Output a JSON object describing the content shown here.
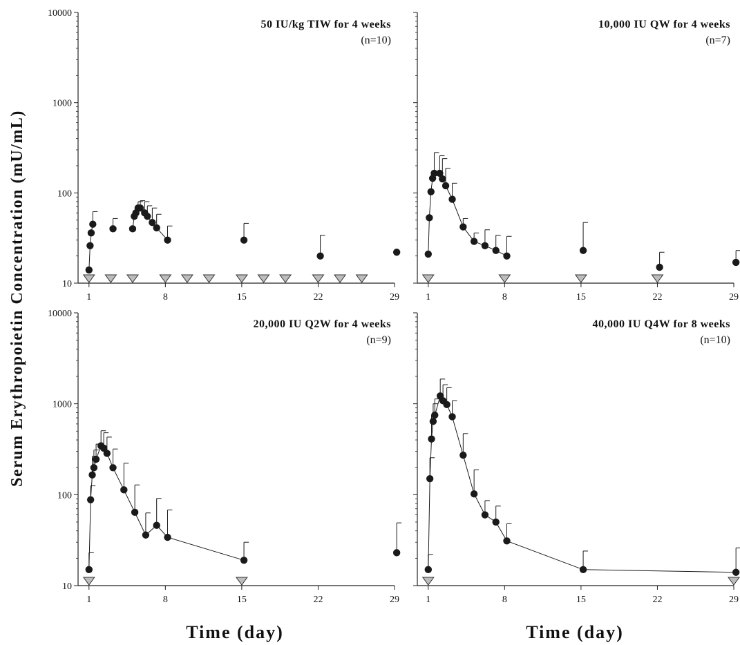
{
  "y_axis_label": "Serum Erythropoietin Concentration (mU/mL)",
  "x_axis_label": "Time (day)",
  "colors": {
    "marker": "#1a1a1a",
    "line": "#1a1a1a",
    "dose_marker_fill": "#bdbdbd",
    "dose_marker_stroke": "#333333"
  },
  "chart_data": [
    {
      "type": "line",
      "title": "50 IU/kg TIW for 4 weeks",
      "n_label": "(n=10)",
      "xlabel": "Time (day)",
      "ylabel": "Serum Erythropoietin Concentration (mU/mL)",
      "yscale": "log",
      "xlim": [
        0,
        29
      ],
      "ylim": [
        10,
        10000
      ],
      "x_ticks": [
        1,
        8,
        15,
        22,
        29
      ],
      "y_ticks": [
        10,
        100,
        1000,
        10000
      ],
      "y_tick_labels": [
        "10",
        "100",
        "1000",
        "10000"
      ],
      "series": [
        {
          "points": [
            {
              "x": 1.0,
              "y": 14,
              "err": 0
            },
            {
              "x": 1.1,
              "y": 26,
              "err": 0
            },
            {
              "x": 1.2,
              "y": 36,
              "err": 0
            },
            {
              "x": 1.35,
              "y": 45,
              "err": 62
            }
          ],
          "connected": true
        },
        {
          "points": [
            {
              "x": 3.2,
              "y": 40,
              "err": 52
            }
          ],
          "connected": false
        },
        {
          "points": [
            {
              "x": 5.0,
              "y": 40,
              "err": 0
            },
            {
              "x": 5.15,
              "y": 55,
              "err": 0
            },
            {
              "x": 5.3,
              "y": 60,
              "err": 0
            },
            {
              "x": 5.5,
              "y": 68,
              "err": 80
            },
            {
              "x": 5.7,
              "y": 68,
              "err": 82
            },
            {
              "x": 6.1,
              "y": 60,
              "err": 80
            },
            {
              "x": 6.35,
              "y": 55,
              "err": 72
            },
            {
              "x": 6.8,
              "y": 47,
              "err": 68
            },
            {
              "x": 7.2,
              "y": 41,
              "err": 58
            },
            {
              "x": 8.2,
              "y": 30,
              "err": 43
            }
          ],
          "connected": true
        },
        {
          "points": [
            {
              "x": 15.2,
              "y": 30,
              "err": 46
            },
            {
              "x": 22.2,
              "y": 20,
              "err": 34
            },
            {
              "x": 29.2,
              "y": 22,
              "err": 0
            }
          ],
          "connected": false
        }
      ],
      "dosing_days": [
        1,
        3,
        5,
        8,
        10,
        12,
        15,
        17,
        19,
        22,
        24,
        26
      ]
    },
    {
      "type": "line",
      "title": "10,000 IU QW for 4 weeks",
      "n_label": "(n=7)",
      "xlabel": "Time (day)",
      "ylabel": "Serum Erythropoietin Concentration (mU/mL)",
      "yscale": "log",
      "xlim": [
        0,
        29
      ],
      "ylim": [
        10,
        10000
      ],
      "x_ticks": [
        1,
        8,
        15,
        22,
        29
      ],
      "y_ticks": [
        10,
        100,
        1000,
        10000
      ],
      "y_tick_labels": [
        "10",
        "100",
        "1000",
        "10000"
      ],
      "series": [
        {
          "points": [
            {
              "x": 1.0,
              "y": 21,
              "err": 0
            },
            {
              "x": 1.1,
              "y": 53,
              "err": 0
            },
            {
              "x": 1.25,
              "y": 103,
              "err": 0
            },
            {
              "x": 1.4,
              "y": 145,
              "err": 0
            },
            {
              "x": 1.55,
              "y": 165,
              "err": 280
            },
            {
              "x": 2.05,
              "y": 165,
              "err": 258
            },
            {
              "x": 2.3,
              "y": 143,
              "err": 240
            },
            {
              "x": 2.6,
              "y": 120,
              "err": 188
            },
            {
              "x": 3.2,
              "y": 85,
              "err": 128
            },
            {
              "x": 4.2,
              "y": 42,
              "err": 52
            },
            {
              "x": 5.2,
              "y": 29,
              "err": 36
            },
            {
              "x": 6.2,
              "y": 26,
              "err": 39
            },
            {
              "x": 7.2,
              "y": 23,
              "err": 34
            },
            {
              "x": 8.2,
              "y": 20,
              "err": 33
            }
          ],
          "connected": true
        },
        {
          "points": [
            {
              "x": 15.2,
              "y": 23,
              "err": 47
            },
            {
              "x": 22.2,
              "y": 15,
              "err": 22
            },
            {
              "x": 29.2,
              "y": 17,
              "err": 23
            }
          ],
          "connected": false
        }
      ],
      "dosing_days": [
        1,
        8,
        15,
        22
      ]
    },
    {
      "type": "line",
      "title": "20,000 IU Q2W for 4 weeks",
      "n_label": "(n=9)",
      "xlabel": "Time (day)",
      "ylabel": "Serum Erythropoietin Concentration (mU/mL)",
      "yscale": "log",
      "xlim": [
        0,
        29
      ],
      "ylim": [
        10,
        10000
      ],
      "x_ticks": [
        1,
        8,
        15,
        22,
        29
      ],
      "y_ticks": [
        10,
        100,
        1000,
        10000
      ],
      "y_tick_labels": [
        "10",
        "100",
        "1000",
        "10000"
      ],
      "series": [
        {
          "points": [
            {
              "x": 1.0,
              "y": 15,
              "err": 23
            },
            {
              "x": 1.15,
              "y": 88,
              "err": 125
            },
            {
              "x": 1.3,
              "y": 165,
              "err": 265
            },
            {
              "x": 1.45,
              "y": 198,
              "err": 310
            },
            {
              "x": 1.65,
              "y": 245,
              "err": 360
            },
            {
              "x": 2.1,
              "y": 345,
              "err": 505
            },
            {
              "x": 2.35,
              "y": 325,
              "err": 480
            },
            {
              "x": 2.65,
              "y": 285,
              "err": 430
            },
            {
              "x": 3.2,
              "y": 198,
              "err": 318
            },
            {
              "x": 4.2,
              "y": 113,
              "err": 222
            },
            {
              "x": 5.2,
              "y": 64,
              "err": 128
            },
            {
              "x": 6.2,
              "y": 36,
              "err": 63
            },
            {
              "x": 7.2,
              "y": 46,
              "err": 91
            },
            {
              "x": 8.2,
              "y": 34,
              "err": 68
            },
            {
              "x": 15.2,
              "y": 19,
              "err": 30
            }
          ],
          "connected": true
        },
        {
          "points": [
            {
              "x": 29.2,
              "y": 23,
              "err": 49
            }
          ],
          "connected": false
        }
      ],
      "dosing_days": [
        1,
        15
      ]
    },
    {
      "type": "line",
      "title": "40,000 IU Q4W for 8 weeks",
      "n_label": "(n=10)",
      "xlabel": "Time (day)",
      "ylabel": "Serum Erythropoietin Concentration (mU/mL)",
      "yscale": "log",
      "xlim": [
        0,
        29
      ],
      "ylim": [
        10,
        10000
      ],
      "x_ticks": [
        1,
        8,
        15,
        22,
        29
      ],
      "y_ticks": [
        10,
        100,
        1000,
        10000
      ],
      "y_tick_labels": [
        "10",
        "100",
        "1000",
        "10000"
      ],
      "series": [
        {
          "points": [
            {
              "x": 1.0,
              "y": 15,
              "err": 22
            },
            {
              "x": 1.15,
              "y": 150,
              "err": 255
            },
            {
              "x": 1.3,
              "y": 410,
              "err": 760
            },
            {
              "x": 1.45,
              "y": 640,
              "err": 1000
            },
            {
              "x": 1.6,
              "y": 750,
              "err": 1130
            },
            {
              "x": 2.1,
              "y": 1220,
              "err": 1870
            },
            {
              "x": 2.35,
              "y": 1080,
              "err": 1620
            },
            {
              "x": 2.7,
              "y": 980,
              "err": 1500
            },
            {
              "x": 3.2,
              "y": 720,
              "err": 1080
            },
            {
              "x": 4.2,
              "y": 272,
              "err": 470
            },
            {
              "x": 5.2,
              "y": 102,
              "err": 188
            },
            {
              "x": 6.2,
              "y": 60,
              "err": 86
            },
            {
              "x": 7.2,
              "y": 50,
              "err": 75
            },
            {
              "x": 8.2,
              "y": 31,
              "err": 48
            },
            {
              "x": 15.2,
              "y": 15,
              "err": 24
            },
            {
              "x": 29.2,
              "y": 14,
              "err": 26
            }
          ],
          "connected": true
        }
      ],
      "dosing_days": [
        1,
        29
      ]
    }
  ]
}
